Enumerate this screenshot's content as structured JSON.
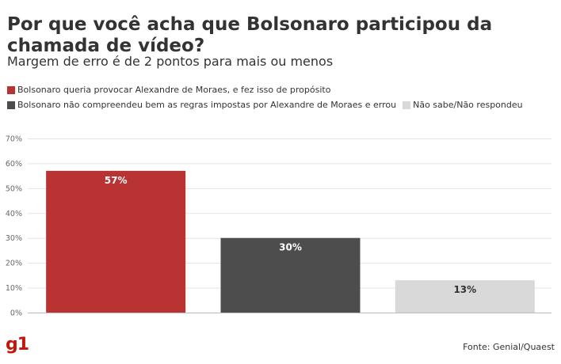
{
  "header": {
    "title": "Por que você acha que Bolsonaro participou da chamada de vídeo?",
    "subtitle": "Margem de erro é de 2 pontos para mais ou menos"
  },
  "footer": {
    "logo": "g1",
    "source": "Fonte: Genial/Quaest"
  },
  "chart_data": {
    "type": "bar",
    "title": "Por que você acha que Bolsonaro participou da chamada de vídeo?",
    "subtitle": "Margem de erro é de 2 pontos para mais ou menos",
    "categories": [
      "Bolsonaro queria provocar Alexandre de Moraes, e fez isso de propósito",
      "Bolsonaro não compreendeu bem as regras impostas por Alexandre de Moraes e errou",
      "Não sabe/Não respondeu"
    ],
    "values": [
      57,
      30,
      13
    ],
    "value_labels": [
      "57%",
      "30%",
      "13%"
    ],
    "colors": [
      "#b83332",
      "#4d4d4d",
      "#d9d9d9"
    ],
    "label_colors": [
      "#ffffff",
      "#ffffff",
      "#333333"
    ],
    "ylim": [
      0,
      70
    ],
    "yticks": [
      "0%",
      "10%",
      "20%",
      "30%",
      "40%",
      "50%",
      "60%",
      "70%"
    ],
    "grid": true,
    "legend_placement": "top",
    "xlabel": "",
    "ylabel": ""
  }
}
